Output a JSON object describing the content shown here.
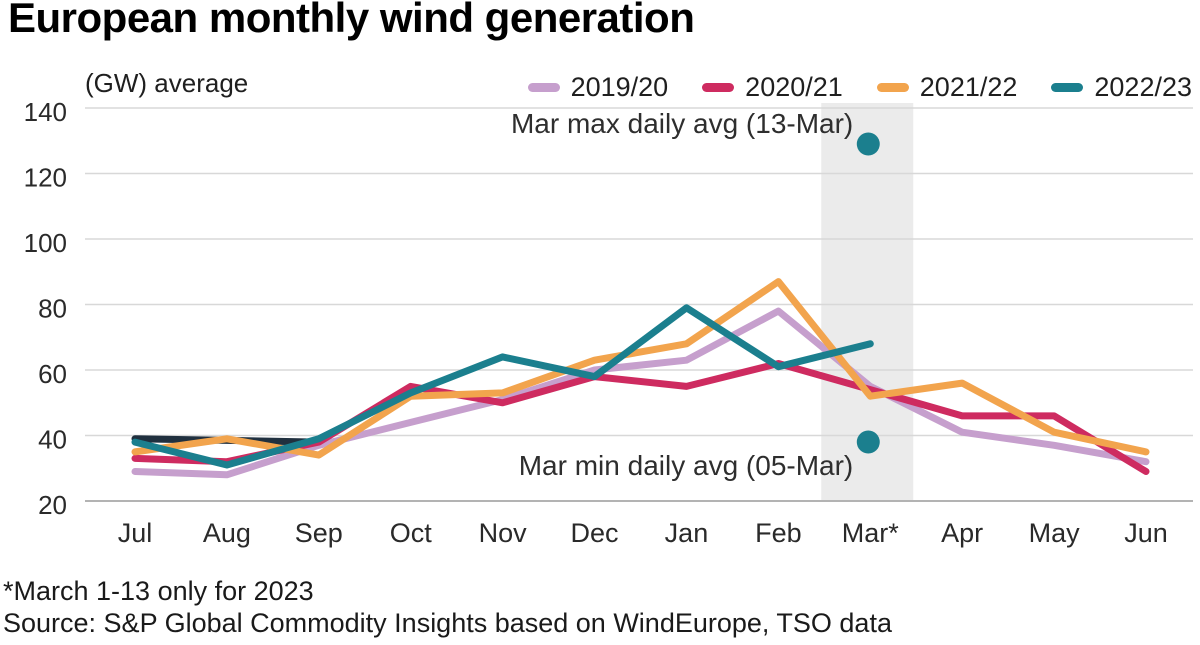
{
  "header": {
    "title": "European monthly wind generation",
    "unit_label": "(GW) average"
  },
  "legend": {
    "items": [
      {
        "label": "2019/20",
        "color": "#c69fcd"
      },
      {
        "label": "2020/21",
        "color": "#ce2b60"
      },
      {
        "label": "2021/22",
        "color": "#f2a44d"
      },
      {
        "label": "2022/23",
        "color": "#1b7f8e"
      }
    ]
  },
  "chart_data": {
    "type": "line",
    "title": "European monthly wind generation",
    "ylabel": "(GW) average",
    "categories": [
      "Jul",
      "Aug",
      "Sep",
      "Oct",
      "Nov",
      "Dec",
      "Jan",
      "Feb",
      "Mar*",
      "Apr",
      "May",
      "Jun"
    ],
    "y_ticks": [
      20,
      40,
      60,
      80,
      100,
      120,
      140
    ],
    "ylim": [
      20,
      140
    ],
    "grid": true,
    "legend_position": "top-right",
    "series": [
      {
        "name": "unlabeled-dark-segment",
        "color": "#20303f",
        "values": [
          39,
          38.5,
          38,
          null,
          null,
          null,
          null,
          null,
          null,
          null,
          null,
          null
        ]
      },
      {
        "name": "2019/20",
        "color": "#c69fcd",
        "values": [
          29,
          28,
          37,
          44,
          51,
          60,
          63,
          78,
          55,
          41,
          37,
          32
        ]
      },
      {
        "name": "2020/21",
        "color": "#ce2b60",
        "values": [
          33,
          32,
          38,
          55,
          50,
          58,
          55,
          62,
          54,
          46,
          46,
          29
        ]
      },
      {
        "name": "2021/22",
        "color": "#f2a44d",
        "values": [
          35,
          39,
          34,
          52,
          53,
          63,
          68,
          87,
          52,
          56,
          41,
          35
        ]
      },
      {
        "name": "2022/23",
        "color": "#1b7f8e",
        "values": [
          38,
          31,
          39,
          53,
          64,
          58,
          79,
          61,
          68,
          null,
          null,
          null
        ]
      }
    ],
    "highlight_band": {
      "category": "Mar*",
      "color": "#ebebeb"
    },
    "annotations": [
      {
        "label": "Mar max daily avg (13-Mar)",
        "category": "Mar*",
        "value": 129,
        "dot_color": "#1b7f8e"
      },
      {
        "label": "Mar min daily avg (05-Mar)",
        "category": "Mar*",
        "value": 38,
        "dot_color": "#1b7f8e"
      }
    ]
  },
  "footer": {
    "footnote": "*March 1-13 only for 2023",
    "source": "Source: S&P Global Commodity Insights based on WindEurope, TSO data"
  }
}
